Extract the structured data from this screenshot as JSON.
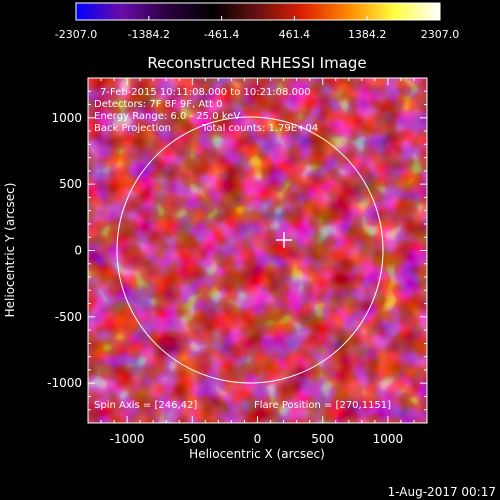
{
  "colorbar": {
    "tick_labels": [
      "-2307.0",
      "-1384.2",
      "-461.4",
      "461.4",
      "1384.2",
      "2307.0"
    ],
    "colors": [
      "#0000ff",
      "#6a0ca8",
      "#2a0040",
      "#000000",
      "#6a1010",
      "#e02000",
      "#ff8a00",
      "#ffff40",
      "#ffffff"
    ]
  },
  "plot": {
    "title": "Reconstructed RHESSI Image",
    "xlabel": "Heliocentric X (arcsec)",
    "ylabel": "Heliocentric Y (arcsec)",
    "x_ticks": [
      "-1000",
      "-500",
      "0",
      "500",
      "1000"
    ],
    "y_ticks": [
      "1000",
      "500",
      "0",
      "-500",
      "-1000"
    ],
    "xlim": [
      -1300,
      1300
    ],
    "ylim": [
      -1300,
      1300
    ]
  },
  "annotations": {
    "time_range": "7-Feb-2015 10:11:08.000 to 10:21:08.000",
    "detectors": "Detectors: 7F 8F 9F, Att 0",
    "energy_range": "Energy Range: 6.0 - 25.0 keV",
    "method": "Back Projection",
    "total_counts": "Total counts: 1.79E+04",
    "spin_axis": "Spin Axis = [246,42]",
    "flare_position": "Flare Position = [270,1151]"
  },
  "footer": {
    "date": "1-Aug-2017 00:17"
  }
}
